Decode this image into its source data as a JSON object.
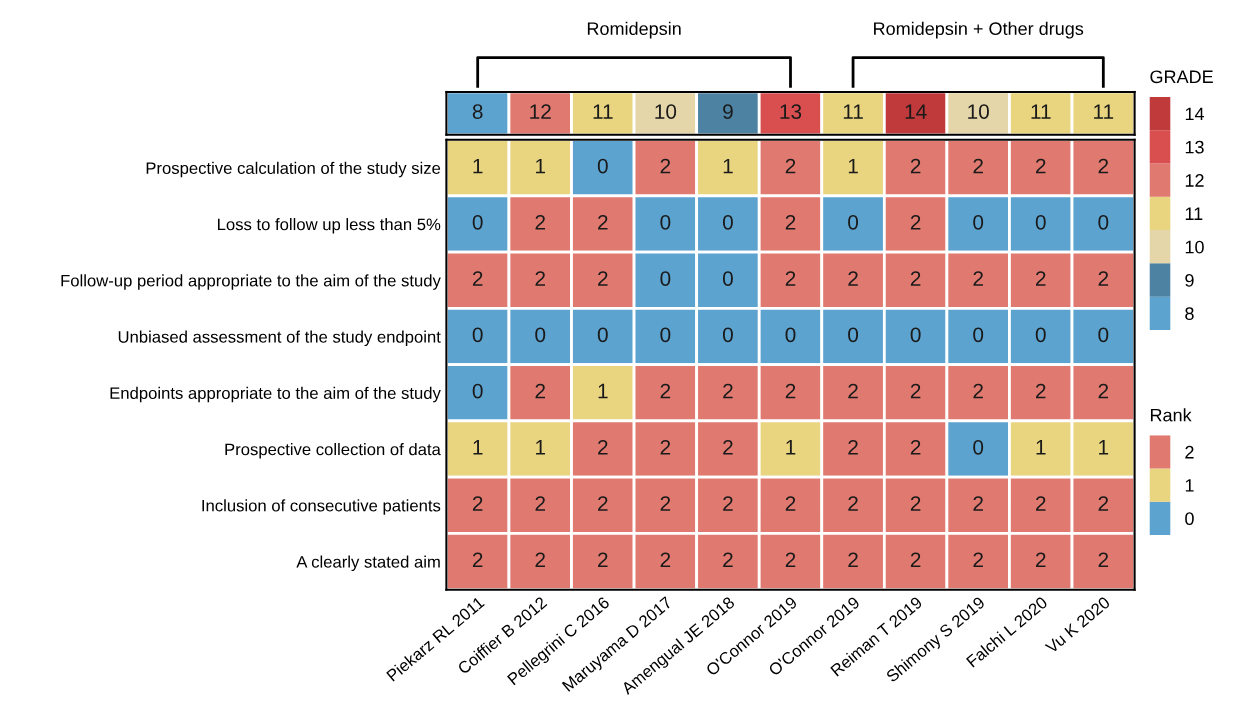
{
  "chart_data": [
    {
      "type": "heatmap",
      "categories": [
        null,
        null,
        null,
        null,
        null,
        null,
        null,
        null,
        null,
        null,
        null
      ],
      "y_categories": [
        null
      ],
      "cells": [
        [
          8,
          12,
          11,
          10,
          9,
          13,
          11,
          14,
          10,
          11,
          11
        ]
      ],
      "data_labels": true,
      "clabel": "GRADE",
      "clim": [
        7.5,
        14.5
      ],
      "cticks": [
        14,
        13,
        12,
        11,
        10,
        9,
        8
      ],
      "colors": [
        "#c0393b",
        "#d94f4f",
        "#e07a70",
        "#e9d57f",
        "#e5d6aa",
        "#4e82a3",
        "#5ca3d0"
      ],
      "annotations": [
        "Romidepsin",
        "Romidepsin + Other drugs"
      ]
    },
    {
      "type": "heatmap",
      "categories": [
        "Piekarz RL 2011",
        "Coiffier B 2012",
        "Pellegrini C 2016",
        "Maruyama D 2017",
        "Amengual JE 2018",
        "O'Connor 2019",
        "O'Connor 2019",
        "Reiman T 2019",
        "Shimony S 2019",
        "Falchi L 2020",
        "Vu K 2020"
      ],
      "y_categories": [
        "Prospective calculation of the study size",
        "Loss to follow up less than 5%",
        "Follow-up period appropriate to the aim of the study",
        "Unbiased assessment of the study endpoint",
        "Endpoints appropriate to the aim of the study",
        "Prospective collection of data",
        "Inclusion of consecutive patients",
        "A clearly stated aim"
      ],
      "cells": [
        [
          1,
          1,
          0,
          2,
          1,
          2,
          1,
          2,
          2,
          2,
          2
        ],
        [
          0,
          2,
          2,
          0,
          0,
          2,
          0,
          2,
          0,
          0,
          0
        ],
        [
          2,
          2,
          2,
          0,
          0,
          2,
          2,
          2,
          2,
          2,
          2
        ],
        [
          0,
          0,
          0,
          0,
          0,
          0,
          0,
          0,
          0,
          0,
          0
        ],
        [
          0,
          2,
          1,
          2,
          2,
          2,
          2,
          2,
          2,
          2,
          2
        ],
        [
          1,
          1,
          2,
          2,
          2,
          1,
          2,
          2,
          0,
          1,
          1
        ],
        [
          2,
          2,
          2,
          2,
          2,
          2,
          2,
          2,
          2,
          2,
          2
        ],
        [
          2,
          2,
          2,
          2,
          2,
          2,
          2,
          2,
          2,
          2,
          2
        ]
      ],
      "data_labels": true,
      "clabel": "Rank",
      "clim": [
        -0.5,
        2.5
      ],
      "cticks": [
        2,
        1,
        0
      ],
      "colors": [
        "#e07a70",
        "#e9d57f",
        "#5ca3d0"
      ]
    }
  ]
}
